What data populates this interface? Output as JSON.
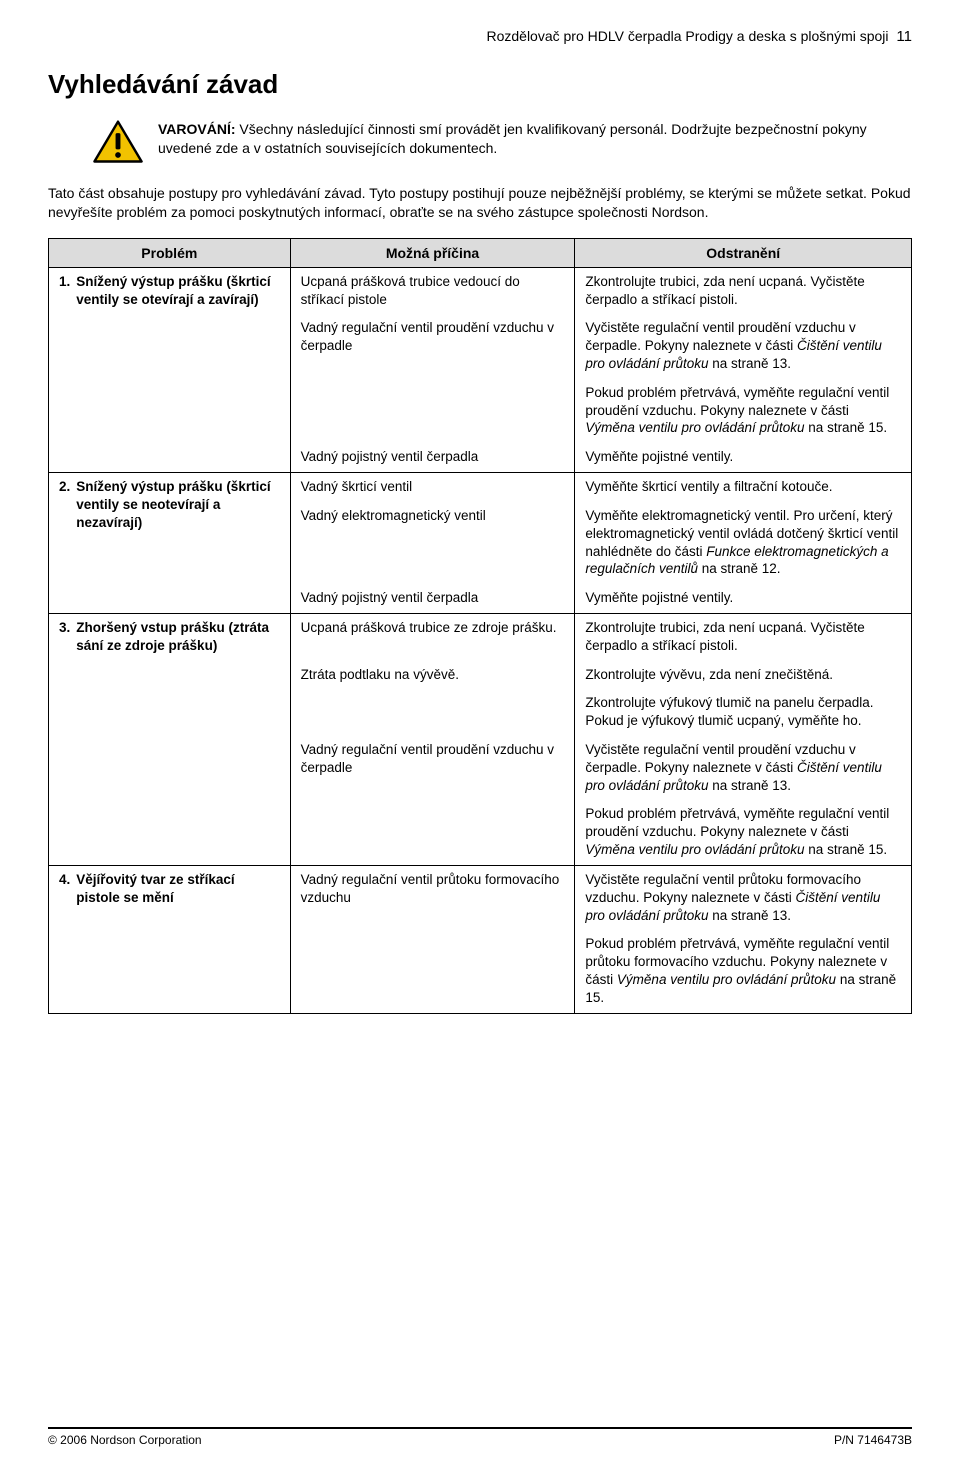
{
  "running_head": {
    "title": "Rozdělovač pro HDLV čerpadla Prodigy a deska s plošnými spoji",
    "page_number": "11"
  },
  "section_title": "Vyhledávání závad",
  "warning": {
    "lead": "VAROVÁNÍ:",
    "text": "Všechny následující činnosti smí provádět jen kvalifikovaný personál. Dodržujte bezpečnostní pokyny uvedené zde a v ostatních souvisejících dokumentech.",
    "icon_stroke": "#000000",
    "icon_fill": "#f2c200"
  },
  "intro_text": "Tato část obsahuje postupy pro vyhledávání závad. Tyto postupy postihují pouze nejběžnější problémy, se kterými se můžete setkat. Pokud nevyřešíte problém za pomoci poskytnutých informací, obraťte se na svého zástupce společnosti Nordson.",
  "table": {
    "headers": {
      "c1": "Problém",
      "c2": "Možná příčina",
      "c3": "Odstranění"
    },
    "groups": [
      {
        "num": "1.",
        "problem": "Snížený výstup prášku (škrticí ventily se otevírají a zavírají)",
        "rows": [
          {
            "cause": "Ucpaná prášková trubice vedoucí do stříkací pistole",
            "fix": "Zkontrolujte trubici, zda není ucpaná. Vyčistěte čerpadlo a stříkací pistoli."
          },
          {
            "cause": "Vadný regulační ventil proudění vzduchu v čerpadle",
            "fix": "Vyčistěte regulační ventil proudění vzduchu v čerpadle. Pokyny naleznete v části <span class=\"ital\">Čištění ventilu pro ovládání průtoku</span> na straně 13."
          },
          {
            "cause": "",
            "fix": "Pokud problém přetrvává, vyměňte regulační ventil proudění vzduchu. Pokyny naleznete v části <span class=\"ital\">Výměna ventilu pro ovládání průtoku</span> na straně 15."
          },
          {
            "cause": "Vadný pojistný ventil čerpadla",
            "fix": "Vyměňte pojistné ventily."
          }
        ]
      },
      {
        "num": "2.",
        "problem": "Snížený výstup prášku (škrticí ventily se neotevírají a nezavírají)",
        "rows": [
          {
            "cause": "Vadný škrticí ventil",
            "fix": "Vyměňte škrticí ventily a filtrační kotouče."
          },
          {
            "cause": "Vadný elektromagnetický ventil",
            "fix": "Vyměňte elektromagnetický ventil. Pro určení, který elektromagnetický ventil ovládá dotčený škrticí ventil nahlédněte do části <span class=\"ital\">Funkce elektromagnetických a regulačních ventilů</span> na straně 12."
          },
          {
            "cause": "Vadný pojistný ventil čerpadla",
            "fix": "Vyměňte pojistné ventily."
          }
        ]
      },
      {
        "num": "3.",
        "problem": "Zhoršený vstup prášku (ztráta sání ze zdroje prášku)",
        "rows": [
          {
            "cause": "Ucpaná prášková trubice ze zdroje prášku.",
            "fix": "Zkontrolujte trubici, zda není ucpaná. Vyčistěte čerpadlo a stříkací pistoli."
          },
          {
            "cause": "Ztráta podtlaku na vývěvě.",
            "fix": "Zkontrolujte vývěvu, zda není znečištěná."
          },
          {
            "cause": "",
            "fix": "Zkontrolujte výfukový tlumič na panelu čerpadla. Pokud je výfukový tlumič ucpaný, vyměňte ho."
          },
          {
            "cause": "Vadný regulační ventil proudění vzduchu v čerpadle",
            "fix": "Vyčistěte regulační ventil proudění vzduchu v čerpadle. Pokyny naleznete v části <span class=\"ital\">Čištění ventilu pro ovládání průtoku</span> na straně 13."
          },
          {
            "cause": "",
            "fix": "Pokud problém přetrvává, vyměňte regulační ventil proudění vzduchu. Pokyny naleznete v části <span class=\"ital\">Výměna ventilu pro ovládání průtoku</span> na straně 15."
          }
        ]
      },
      {
        "num": "4.",
        "problem": "Vějířovitý tvar ze stříkací pistole se mění",
        "rows": [
          {
            "cause": "Vadný regulační ventil průtoku formovacího vzduchu",
            "fix": "Vyčistěte regulační ventil průtoku formovacího vzduchu. Pokyny naleznete v části <span class=\"ital\">Čištění ventilu pro ovládání průtoku</span> na straně 13."
          },
          {
            "cause": "",
            "fix": "Pokud problém přetrvává, vyměňte regulační ventil průtoku formovacího vzduchu. Pokyny naleznete v části <span class=\"ital\">Výměna ventilu pro ovládání průtoku</span>  na straně 15."
          }
        ]
      }
    ]
  },
  "footer": {
    "left": "© 2006 Nordson Corporation",
    "right": "P/N 7146473B"
  }
}
